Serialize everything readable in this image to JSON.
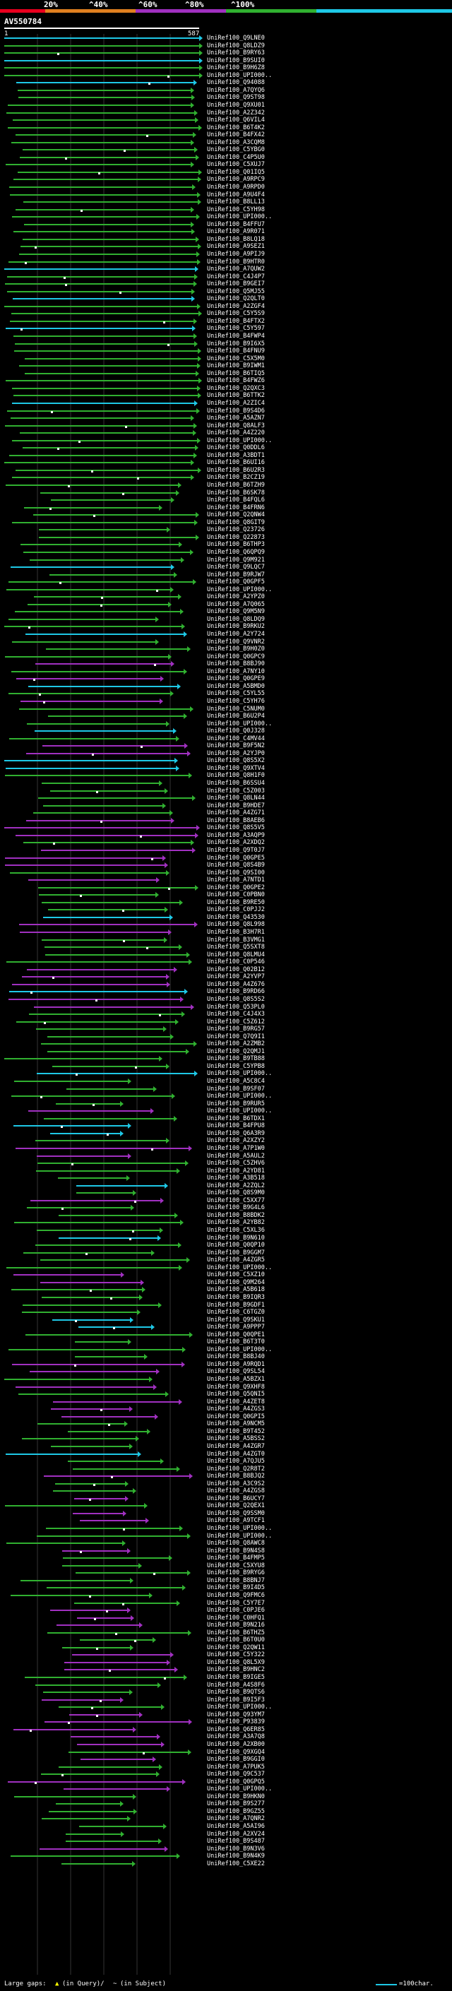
{
  "legend": {
    "labels": [
      "20%",
      "^40%",
      "^60%",
      "^80%",
      "^100%"
    ],
    "colors": [
      "#e8001e",
      "#e08020",
      "#a030c0",
      "#30b030",
      "#1ec8e6"
    ]
  },
  "query": {
    "accession": "AV550784",
    "start": "1",
    "end": "587"
  },
  "hits": [
    "UniRef100_Q9LNE0",
    "UniRef100_Q8LDZ9",
    "UniRef100_B9RY63",
    "UniRef100_B9SUI0",
    "UniRef100_B9H6Z8",
    "UniRef100_UPI000..",
    "UniRef100_Q94088",
    "UniRef100_A7QYQ6",
    "UniRef100_Q9ST98",
    "UniRef100_Q9XU01",
    "UniRef100_A2Z342",
    "UniRef100_Q6VIL4",
    "UniRef100_B6T4K2",
    "UniRef100_B4FX42",
    "UniRef100_A3CQM8",
    "UniRef100_C5YBG0",
    "UniRef100_C4P5U0",
    "UniRef100_C5XUJ7",
    "UniRef100_Q01IQ5",
    "UniRef100_A9RPC9",
    "UniRef100_A9RPD0",
    "UniRef100_A9U4F4",
    "UniRef100_B8LL13",
    "UniRef100_C5YH98",
    "UniRef100_UPI000..",
    "UniRef100_B4FFU7",
    "UniRef100_A9R071",
    "UniRef100_B8LQ18",
    "UniRef100_A9SEZ1",
    "UniRef100_A9PIJ9",
    "UniRef100_B9HTR0",
    "UniRef100_A7QUW2",
    "UniRef100_C4J4P7",
    "UniRef100_B9GEI7",
    "UniRef100_Q5MJ55",
    "UniRef100_Q2QLT0",
    "UniRef100_A2ZGF4",
    "UniRef100_C5Y5S9",
    "UniRef100_B4FTX2",
    "UniRef100_C5Y597",
    "UniRef100_B4FWP4",
    "UniRef100_B9I6X5",
    "UniRef100_B4FNU9",
    "UniRef100_C5X5M0",
    "UniRef100_B9IWM1",
    "UniRef100_B6TIQ5",
    "UniRef100_B4FWZ6",
    "UniRef100_Q2QXC3",
    "UniRef100_B6TTK2",
    "UniRef100_A2ZIC4",
    "UniRef100_B9S4D6",
    "UniRef100_A5AZN7",
    "UniRef100_Q8ALF3",
    "UniRef100_A4Z220",
    "UniRef100_UPI000..",
    "UniRef100_Q0DDL6",
    "UniRef100_A3BDT1",
    "UniRef100_B6UI16",
    "UniRef100_B6U2R3",
    "UniRef100_B2CZ19",
    "UniRef100_B6TZH9",
    "UniRef100_B6SK78",
    "UniRef100_B4FQL6",
    "UniRef100_B4FRN6",
    "UniRef100_Q2QNW4",
    "UniRef100_Q8GIT9",
    "UniRef100_Q23726",
    "UniRef100_Q22873",
    "UniRef100_B6THP3",
    "UniRef100_Q6QPQ9",
    "UniRef100_Q9M921",
    "UniRef100_Q9LQC7",
    "UniRef100_B9RJW7",
    "UniRef100_Q0GPF5",
    "UniRef100_UPI000..",
    "UniRef100_A2YPZ0",
    "UniRef100_A7Q065",
    "UniRef100_Q9M5N9",
    "UniRef100_Q8LDQ9",
    "UniRef100_B9RKU2",
    "UniRef100_A2Y724",
    "UniRef100_Q9VNR2",
    "UniRef100_B9H0Z0",
    "UniRef100_Q0GPC9",
    "UniRef100_B8BJ90",
    "UniRef100_A7NY10",
    "UniRef100_Q0GPE9",
    "UniRef100_A5BMD0",
    "UniRef100_C5YL55",
    "UniRef100_C5YH76",
    "UniRef100_C5NUM0",
    "UniRef100_B6U2P4",
    "UniRef100_UPI000..",
    "UniRef100_Q0J328",
    "UniRef100_C4MV44",
    "UniRef100_B9F5N2",
    "UniRef100_A2YJP0",
    "UniRef100_Q8S5X2",
    "UniRef100_Q9XTV4",
    "UniRef100_Q8H1F0",
    "UniRef100_B6SSU4",
    "UniRef100_C5Z003",
    "UniRef100_Q8LN44",
    "UniRef100_B9HDE7",
    "UniRef100_A4ZG71",
    "UniRef100_B8AEB6",
    "UniRef100_Q8S5V5",
    "UniRef100_A3AQP9",
    "UniRef100_A2XDQ2",
    "UniRef100_Q9T0J7",
    "UniRef100_Q0GPE5",
    "UniRef100_Q8S4B9",
    "UniRef100_Q9SI00",
    "UniRef100_A7NTD1",
    "UniRef100_Q0GPE2",
    "UniRef100_C0PBN0",
    "UniRef100_B9RE50",
    "UniRef100_C0PJJ2",
    "UniRef100_Q43530",
    "UniRef100_Q8L998",
    "UniRef100_B3H7R1",
    "UniRef100_B3VMG1",
    "UniRef100_Q5SXT8",
    "UniRef100_Q8LMU4",
    "UniRef100_C0P546",
    "UniRef100_Q02B12",
    "UniRef100_A2YVP7",
    "UniRef100_A4Z676",
    "UniRef100_B9RD66",
    "UniRef100_Q8S5S2",
    "UniRef100_Q53PL0",
    "UniRef100_C4J4X3",
    "UniRef100_C5Z612",
    "UniRef100_B9RG57",
    "UniRef100_Q7Q9I1",
    "UniRef100_A2ZMB2",
    "UniRef100_Q2QMJ1",
    "UniRef100_B9TB88",
    "UniRef100_C5YPB8",
    "UniRef100_UPI000..",
    "UniRef100_A5C8C4",
    "UniRef100_B9SF07",
    "UniRef100_UPI000..",
    "UniRef100_B9RUR5",
    "UniRef100_UPI000..",
    "UniRef100_B6TDX1",
    "UniRef100_B4FPU8",
    "UniRef100_Q6A3R9",
    "UniRef100_A2XZY2",
    "UniRef100_A7P1W0",
    "UniRef100_A5AUL2",
    "UniRef100_C5ZHV6",
    "UniRef100_A2YD81",
    "UniRef100_A3B518",
    "UniRef100_A2ZQL2",
    "UniRef100_Q8S9M0",
    "UniRef100_C5XX77",
    "UniRef100_B9G4L6",
    "UniRef100_B8BDK2",
    "UniRef100_A2YB82",
    "UniRef100_C5XL36",
    "UniRef100_B9N610",
    "UniRef100_Q0QP10",
    "UniRef100_B9GGM7",
    "UniRef100_A4ZGR5",
    "UniRef100_UPI000..",
    "UniRef100_C5XZ10",
    "UniRef100_Q9M264",
    "UniRef100_A5B618",
    "UniRef100_B9IQR3",
    "UniRef100_B9GDF1",
    "UniRef100_C6TGZ0",
    "UniRef100_Q9SKU1",
    "UniRef100_A9PPP7",
    "UniRef100_Q0QPE1",
    "UniRef100_B6T3T0",
    "UniRef100_UPI000..",
    "UniRef100_B8BJ40",
    "UniRef100_A9RQD1",
    "UniRef100_Q9SL54",
    "UniRef100_A5BZX1",
    "UniRef100_Q9XHF8",
    "UniRef100_Q5QNI5",
    "UniRef100_A4ZET8",
    "UniRef100_A4ZGS3",
    "UniRef100_Q0GPI5",
    "UniRef100_A9NCM5",
    "UniRef100_B9T452",
    "UniRef100_A5BSS2",
    "UniRef100_A4ZGR7",
    "UniRef100_A4ZGT0",
    "UniRef100_A7QJU5",
    "UniRef100_Q2R8T2",
    "UniRef100_B8BJQ2",
    "UniRef100_A3C9S2",
    "UniRef100_A4ZGS8",
    "UniRef100_B6UCY7",
    "UniRef100_Q2QEX1",
    "UniRef100_Q9SSM0",
    "UniRef100_A9TCF1",
    "UniRef100_UPI000..",
    "UniRef100_UPI000..",
    "UniRef100_Q8AWC8",
    "UniRef100_B9N4S8",
    "UniRef100_B4FMP5",
    "UniRef100_C5XYU8",
    "UniRef100_B9RYG6",
    "UniRef100_B8BNJ7",
    "UniRef100_B9I4D5",
    "UniRef100_Q9FMC6",
    "UniRef100_C5Y7E7",
    "UniRef100_C0PJE6",
    "UniRef100_C0HFQ1",
    "UniRef100_B9N216",
    "UniRef100_B6THZ5",
    "UniRef100_B6T0U0",
    "UniRef100_Q2QW11",
    "UniRef100_C5Y322",
    "UniRef100_Q8L5X9",
    "UniRef100_B9HNC2",
    "UniRef100_B9IGE5",
    "UniRef100_A4S8F6",
    "UniRef100_B9QTS6",
    "UniRef100_B9I5F3",
    "UniRef100_UPI000..",
    "UniRef100_Q93YM7",
    "UniRef100_P93839",
    "UniRef100_Q6ER85",
    "UniRef100_A3A7Q8",
    "UniRef100_A2XB00",
    "UniRef100_Q9XGQ4",
    "UniRef100_B9GGI0",
    "UniRef100_A7PUK5",
    "UniRef100_Q9C537",
    "UniRef100_Q0GPQ5",
    "UniRef100_UPI000..",
    "UniRef100_B9HKN0",
    "UniRef100_B9S277",
    "UniRef100_B9GZ55",
    "UniRef100_A7QNR2",
    "UniRef100_A5AI96",
    "UniRef100_A2XV24",
    "UniRef100_B9S487",
    "UniRef100_B9N3V6",
    "UniRef100_B9N4K9",
    "UniRef100_C5XE22"
  ],
  "footer": {
    "label": "Large gaps:",
    "query_gap": "(in Query)/",
    "subject_gap": "(in Subject)",
    "scale_label": "=100char."
  }
}
